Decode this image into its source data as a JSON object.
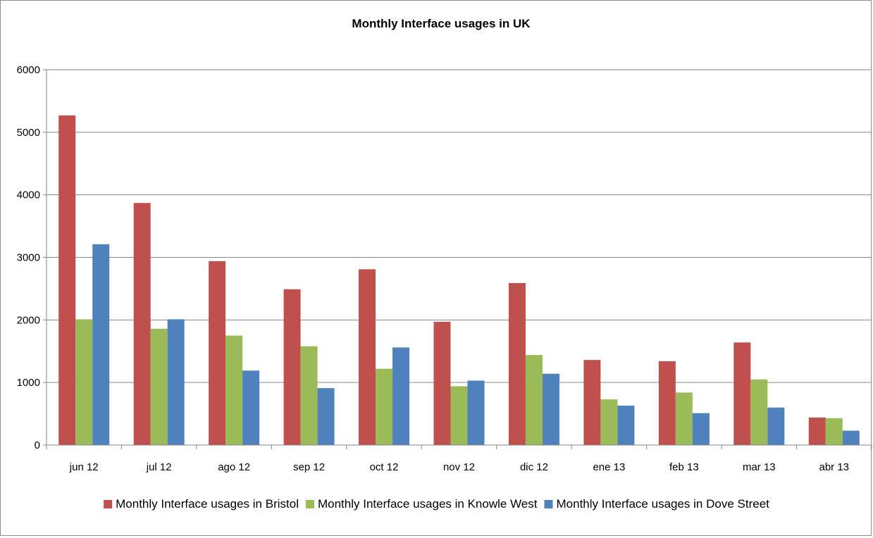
{
  "chart_data": {
    "type": "bar",
    "title": "Monthly Interface usages in UK",
    "xlabel": "",
    "ylabel": "",
    "ylim": [
      0,
      6000
    ],
    "yticks": [
      "0",
      "1000",
      "2000",
      "3000",
      "4000",
      "5000",
      "6000"
    ],
    "grid": true,
    "legend_position": "bottom",
    "categories": [
      "jun 12",
      "jul 12",
      "ago 12",
      "sep 12",
      "oct 12",
      "nov 12",
      "dic 12",
      "ene 13",
      "feb 13",
      "mar 13",
      "abr 13"
    ],
    "series": [
      {
        "name": "Monthly Interface usages in Bristol",
        "color": "#c0504d",
        "values": [
          5270,
          3870,
          2940,
          2490,
          2810,
          1970,
          2590,
          1360,
          1340,
          1640,
          440
        ]
      },
      {
        "name": "Monthly Interface usages in Knowle West",
        "color": "#9bbb59",
        "values": [
          2010,
          1860,
          1750,
          1580,
          1220,
          940,
          1440,
          730,
          840,
          1050,
          430
        ]
      },
      {
        "name": "Monthly Interface usages in Dove Street",
        "color": "#4f81bd",
        "values": [
          3210,
          2010,
          1190,
          910,
          1560,
          1030,
          1140,
          630,
          510,
          600,
          230
        ]
      }
    ]
  }
}
